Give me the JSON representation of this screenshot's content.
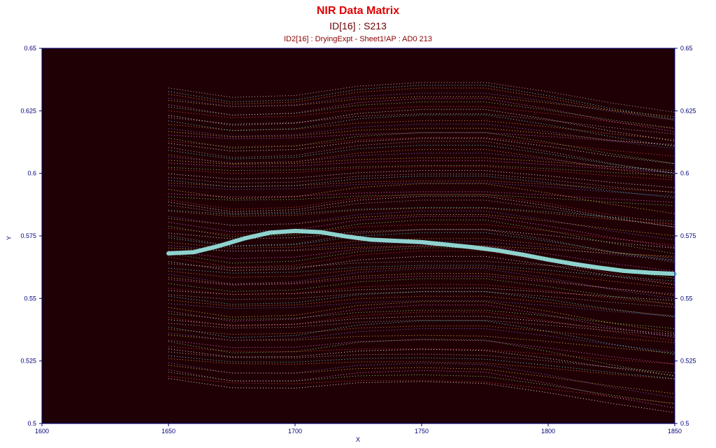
{
  "chart_data": {
    "type": "line",
    "title": "NIR Data Matrix",
    "subtitle": "ID[16] : S213",
    "subtitle2": "ID2[16] : DryingExpt - Sheet1!AP : AD0 213",
    "xlabel": "X",
    "ylabel": "Y",
    "xlim": [
      1600,
      1850
    ],
    "ylim": [
      0.5,
      0.65
    ],
    "xticks": [
      "1600",
      "1650",
      "1700",
      "1750",
      "1800",
      "1850"
    ],
    "yticks": [
      "0.5",
      "0.525",
      "0.55",
      "0.575",
      "0.6",
      "0.625",
      "0.65"
    ],
    "grid": false,
    "background": "#1f0004",
    "highlight_series": {
      "name": "S213",
      "color": "#8fd3cf",
      "x": [
        1650,
        1660,
        1670,
        1680,
        1690,
        1700,
        1710,
        1720,
        1730,
        1740,
        1750,
        1760,
        1770,
        1780,
        1790,
        1800,
        1810,
        1820,
        1830,
        1840,
        1850
      ],
      "y": [
        0.568,
        0.5685,
        0.571,
        0.574,
        0.5763,
        0.577,
        0.5765,
        0.5748,
        0.5735,
        0.573,
        0.5725,
        0.5715,
        0.5705,
        0.5692,
        0.5675,
        0.5655,
        0.5638,
        0.5623,
        0.561,
        0.5603,
        0.5598
      ]
    },
    "background_series": {
      "count": 90,
      "x": [
        1650,
        1675,
        1700,
        1725,
        1750,
        1775,
        1800,
        1825,
        1850
      ],
      "y_start_range": [
        0.518,
        0.634
      ],
      "colors": [
        "#ffffff",
        "#ff4d4d",
        "#7dff7d",
        "#ff80ff",
        "#ffd54d",
        "#8080ff",
        "#ff9a4d",
        "#4dffff",
        "#c8c8c8"
      ]
    }
  }
}
